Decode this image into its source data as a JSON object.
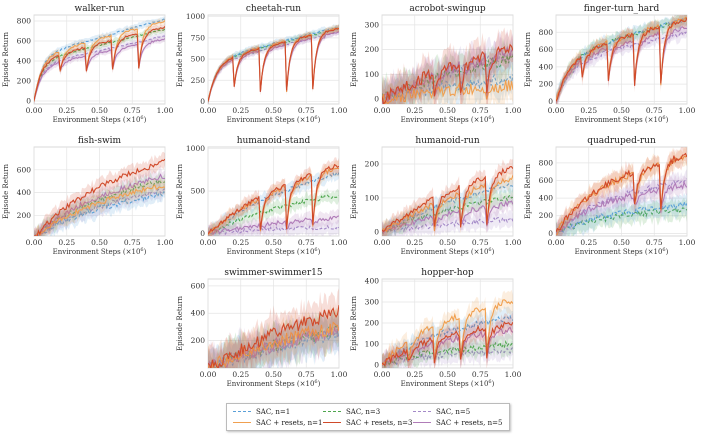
{
  "figure": {
    "xlabel": "Environment Steps (×10",
    "xlabel_exp": "6",
    "xlabel_close": ")",
    "ylabel": "Episode Return"
  },
  "series_styles": [
    {
      "name": "SAC, n=1",
      "color": "#5aa0d8",
      "dash": "3,2"
    },
    {
      "name": "SAC, n=3",
      "color": "#4ea64e",
      "dash": "3,2"
    },
    {
      "name": "SAC, n=5",
      "color": "#a48ac8",
      "dash": "3,2"
    },
    {
      "name": "SAC + resets, n=1",
      "color": "#f0a050",
      "dash": ""
    },
    {
      "name": "SAC + resets, n=3",
      "color": "#d04a2a",
      "dash": ""
    },
    {
      "name": "SAC + resets, n=5",
      "color": "#b07cb8",
      "dash": ""
    }
  ],
  "legend": {
    "items": [
      {
        "label": "SAC, n=1",
        "color": "#5aa0d8",
        "dashed": true
      },
      {
        "label": "SAC, n=3",
        "color": "#4ea64e",
        "dashed": true
      },
      {
        "label": "SAC, n=5",
        "color": "#a48ac8",
        "dashed": true
      },
      {
        "label": "SAC + resets, n=1",
        "color": "#f0a050",
        "dashed": false
      },
      {
        "label": "SAC + resets, n=3",
        "color": "#d04a2a",
        "dashed": false
      },
      {
        "label": "SAC + resets, n=5",
        "color": "#b07cb8",
        "dashed": false
      }
    ]
  },
  "chart_data": [
    {
      "type": "line",
      "title": "walker-run",
      "xlim": [
        0,
        1
      ],
      "ylim": [
        -30,
        860
      ],
      "xticks": [
        "0.00",
        "0.25",
        "0.50",
        "0.75",
        "1.00"
      ],
      "xtick_values": [
        0,
        0.25,
        0.5,
        0.75,
        1
      ],
      "yticks": [
        "0",
        "200",
        "400",
        "600",
        "800"
      ],
      "ytick_values": [
        0,
        200,
        400,
        600,
        800
      ],
      "final": [
        820,
        720,
        650,
        800,
        740,
        620
      ],
      "rise": 0.12,
      "noise": 0.03,
      "dips": [
        {
          "x": 0.2,
          "to": 300
        },
        {
          "x": 0.4,
          "to": 300
        },
        {
          "x": 0.6,
          "to": 320
        },
        {
          "x": 0.8,
          "to": 330
        }
      ]
    },
    {
      "type": "line",
      "title": "cheetah-run",
      "xlim": [
        0,
        1
      ],
      "ylim": [
        -30,
        1020
      ],
      "xticks": [
        "0.00",
        "0.25",
        "0.50",
        "0.75",
        "1.00"
      ],
      "xtick_values": [
        0,
        0.25,
        0.5,
        0.75,
        1
      ],
      "yticks": [
        "0",
        "250",
        "500",
        "750",
        "1000"
      ],
      "ytick_values": [
        0,
        250,
        500,
        750,
        1000
      ],
      "final": [
        880,
        860,
        820,
        870,
        860,
        820
      ],
      "rise": 0.14,
      "noise": 0.03,
      "dips": [
        {
          "x": 0.2,
          "to": 180
        },
        {
          "x": 0.4,
          "to": 120
        },
        {
          "x": 0.6,
          "to": 120
        },
        {
          "x": 0.8,
          "to": 150
        }
      ]
    },
    {
      "type": "line",
      "title": "acrobot-swingup",
      "xlim": [
        0,
        1
      ],
      "ylim": [
        -20,
        340
      ],
      "xticks": [
        "0.00",
        "0.25",
        "0.50",
        "0.75",
        "1.00"
      ],
      "xtick_values": [
        0,
        0.25,
        0.5,
        0.75,
        1
      ],
      "yticks": [
        "0",
        "100",
        "200",
        "300"
      ],
      "ytick_values": [
        0,
        100,
        200,
        300
      ],
      "final": [
        90,
        180,
        200,
        60,
        230,
        210
      ],
      "rise": 0.9,
      "noise": 0.22,
      "dips": [
        {
          "x": 0.2,
          "to": 30
        },
        {
          "x": 0.4,
          "to": 20
        },
        {
          "x": 0.6,
          "to": 20
        },
        {
          "x": 0.8,
          "to": 20
        }
      ]
    },
    {
      "type": "line",
      "title": "finger-turn_hard",
      "xlim": [
        0,
        1
      ],
      "ylim": [
        -30,
        1000
      ],
      "xticks": [
        "0.00",
        "0.25",
        "0.50",
        "0.75",
        "1.00"
      ],
      "xtick_values": [
        0,
        0.25,
        0.5,
        0.75,
        1
      ],
      "yticks": [
        "0",
        "200",
        "400",
        "600",
        "800"
      ],
      "ytick_values": [
        0,
        200,
        400,
        600,
        800
      ],
      "final": [
        960,
        950,
        800,
        960,
        950,
        860
      ],
      "rise": 0.22,
      "noise": 0.08,
      "dips": [
        {
          "x": 0.2,
          "to": 300
        },
        {
          "x": 0.4,
          "to": 250
        },
        {
          "x": 0.6,
          "to": 200
        },
        {
          "x": 0.8,
          "to": 200
        }
      ]
    },
    {
      "type": "line",
      "title": "fish-swim",
      "xlim": [
        0,
        1
      ],
      "ylim": [
        20,
        800
      ],
      "xticks": [
        "0.00",
        "0.25",
        "0.50",
        "0.75",
        "1.00"
      ],
      "xtick_values": [
        0,
        0.25,
        0.5,
        0.75,
        1
      ],
      "yticks": [
        "200",
        "400",
        "600"
      ],
      "ytick_values": [
        200,
        400,
        600
      ],
      "final": [
        400,
        520,
        430,
        480,
        690,
        560
      ],
      "rise": 0.6,
      "noise": 0.1,
      "dips": []
    },
    {
      "type": "line",
      "title": "humanoid-stand",
      "xlim": [
        0,
        1
      ],
      "ylim": [
        -30,
        1020
      ],
      "xticks": [
        "0.00",
        "0.25",
        "0.50",
        "0.75",
        "1.00"
      ],
      "xtick_values": [
        0,
        0.25,
        0.5,
        0.75,
        1
      ],
      "yticks": [
        "0",
        "500",
        "1000"
      ],
      "ytick_values": [
        0,
        500,
        1000
      ],
      "final": [
        750,
        480,
        80,
        820,
        850,
        200
      ],
      "rise": 0.75,
      "noise": 0.08,
      "dips": [
        {
          "x": 0.4,
          "to": 50
        },
        {
          "x": 0.6,
          "to": 60
        },
        {
          "x": 0.8,
          "to": 80
        }
      ]
    },
    {
      "type": "line",
      "title": "humanoid-run",
      "xlim": [
        0,
        1
      ],
      "ylim": [
        -12,
        250
      ],
      "xticks": [
        "0.00",
        "0.25",
        "0.50",
        "0.75",
        "1.00"
      ],
      "xtick_values": [
        0,
        0.25,
        0.5,
        0.75,
        1
      ],
      "yticks": [
        "0",
        "100",
        "200"
      ],
      "ytick_values": [
        0,
        100,
        200
      ],
      "final": [
        150,
        110,
        40,
        170,
        200,
        90
      ],
      "rise": 0.8,
      "noise": 0.1,
      "dips": [
        {
          "x": 0.4,
          "to": 10
        },
        {
          "x": 0.6,
          "to": 15
        },
        {
          "x": 0.8,
          "to": 20
        }
      ]
    },
    {
      "type": "line",
      "title": "quadruped-run",
      "xlim": [
        0,
        1
      ],
      "ylim": [
        -30,
        980
      ],
      "xticks": [
        "0.00",
        "0.25",
        "0.50",
        "0.75",
        "1.00"
      ],
      "xtick_values": [
        0,
        0.25,
        0.5,
        0.75,
        1
      ],
      "yticks": [
        "0",
        "200",
        "400",
        "600",
        "800"
      ],
      "ytick_values": [
        0,
        200,
        400,
        600,
        800
      ],
      "final": [
        330,
        280,
        600,
        880,
        900,
        560
      ],
      "rise": 0.45,
      "noise": 0.12,
      "dips": [
        {
          "x": 0.6,
          "to": 300
        },
        {
          "x": 0.8,
          "to": 260
        }
      ]
    },
    {
      "type": "line",
      "title": "swimmer-swimmer15",
      "xlim": [
        0,
        1
      ],
      "ylim": [
        0,
        650
      ],
      "xticks": [
        "0.00",
        "0.25",
        "0.50",
        "0.75",
        "1.00"
      ],
      "xtick_values": [
        0,
        0.25,
        0.5,
        0.75,
        1
      ],
      "yticks": [
        "200",
        "400",
        "600"
      ],
      "ytick_values": [
        200,
        400,
        600
      ],
      "final": [
        280,
        300,
        290,
        330,
        450,
        300
      ],
      "rise": 0.9,
      "noise": 0.25,
      "dips": []
    },
    {
      "type": "line",
      "title": "hopper-hop",
      "xlim": [
        0,
        1
      ],
      "ylim": [
        -15,
        410
      ],
      "xticks": [
        "0.00",
        "0.25",
        "0.50",
        "0.75",
        "1.00"
      ],
      "xtick_values": [
        0,
        0.25,
        0.5,
        0.75,
        1
      ],
      "yticks": [
        "0",
        "100",
        "200",
        "300",
        "400"
      ],
      "ytick_values": [
        0,
        100,
        200,
        300,
        400
      ],
      "final": [
        230,
        100,
        70,
        310,
        200,
        170
      ],
      "rise": 0.5,
      "noise": 0.12,
      "dips": [
        {
          "x": 0.2,
          "to": 20
        },
        {
          "x": 0.4,
          "to": 20
        },
        {
          "x": 0.6,
          "to": 30
        },
        {
          "x": 0.8,
          "to": 40
        }
      ]
    }
  ]
}
